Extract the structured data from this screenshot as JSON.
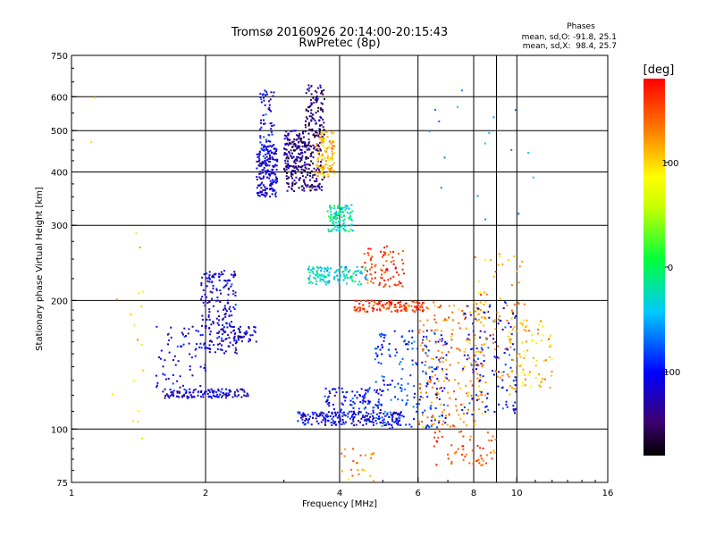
{
  "chart_data": {
    "type": "scatter",
    "title": "Tromsø 20160926 20:14:00-20:15:43",
    "subtitle": "RwPretec (8p)",
    "xlabel": "Frequency [MHz]",
    "ylabel": "Stationary phase Virtual Height [km]",
    "x_scale": "log",
    "y_scale": "log",
    "xlim": [
      1,
      16
    ],
    "ylim": [
      75,
      750
    ],
    "x_ticks": [
      {
        "value": 1,
        "label": "1"
      },
      {
        "value": 2,
        "label": "2"
      },
      {
        "value": 4,
        "label": "4"
      },
      {
        "value": 6,
        "label": "6"
      },
      {
        "value": 8,
        "label": "8"
      },
      {
        "value": 10,
        "label": "10"
      },
      {
        "value": 16,
        "label": "16"
      }
    ],
    "x_gridlines": [
      2,
      4,
      6,
      8,
      9,
      10
    ],
    "y_ticks": [
      {
        "value": 75,
        "label": "75"
      },
      {
        "value": 100,
        "label": "100"
      },
      {
        "value": 200,
        "label": "200"
      },
      {
        "value": 300,
        "label": "300"
      },
      {
        "value": 400,
        "label": "400"
      },
      {
        "value": 500,
        "label": "500"
      },
      {
        "value": 600,
        "label": "600"
      },
      {
        "value": 750,
        "label": "750"
      }
    ],
    "y_gridlines": [
      100,
      200,
      300,
      400,
      500,
      600
    ],
    "grid": true,
    "phases_header": "Phases",
    "phase_stats": [
      "mean, sd,O: -91.8, 25.1",
      "mean, sd,X:  98.4, 25.7"
    ],
    "colorbar": {
      "label": "[deg]",
      "range": [
        -180,
        180
      ],
      "ticks": [
        {
          "value": 100,
          "label": "100"
        },
        {
          "value": 0,
          "label": "0"
        },
        {
          "value": -100,
          "label": "-100"
        }
      ],
      "colormap": "rainbow (black-purple-blue-cyan-green-yellow-orange-red)"
    },
    "clusters": [
      {
        "f": [
          1.6,
          2.5
        ],
        "h": [
          118,
          124
        ],
        "phase": -115,
        "n": 120
      },
      {
        "f": [
          1.55,
          2.0
        ],
        "h": [
          120,
          175
        ],
        "phase": -110,
        "n": 70
      },
      {
        "f": [
          1.95,
          2.35
        ],
        "h": [
          150,
          235
        ],
        "phase": -115,
        "n": 200
      },
      {
        "f": [
          2.3,
          2.6
        ],
        "h": [
          160,
          175
        ],
        "phase": -120,
        "n": 40
      },
      {
        "f": [
          2.6,
          2.9
        ],
        "h": [
          350,
          460
        ],
        "phase": -115,
        "n": 180
      },
      {
        "f": [
          2.65,
          2.85
        ],
        "h": [
          430,
          630
        ],
        "phase": -110,
        "n": 60
      },
      {
        "f": [
          3.0,
          3.35
        ],
        "h": [
          360,
          500
        ],
        "phase": -140,
        "n": 200
      },
      {
        "f": [
          3.35,
          3.7
        ],
        "h": [
          360,
          640
        ],
        "phase": -145,
        "n": 220
      },
      {
        "f": [
          3.55,
          3.9
        ],
        "h": [
          390,
          500
        ],
        "phase": 110,
        "n": 110
      },
      {
        "f": [
          3.75,
          4.3
        ],
        "h": [
          290,
          335
        ],
        "phase": -20,
        "n": 110
      },
      {
        "f": [
          3.4,
          4.6
        ],
        "h": [
          218,
          240
        ],
        "phase": -30,
        "n": 130
      },
      {
        "f": [
          4.5,
          5.6
        ],
        "h": [
          215,
          270
        ],
        "phase": 160,
        "n": 80
      },
      {
        "f": [
          4.3,
          6.2
        ],
        "h": [
          188,
          200
        ],
        "phase": 160,
        "n": 120
      },
      {
        "f": [
          3.2,
          5.5
        ],
        "h": [
          102,
          110
        ],
        "phase": -110,
        "n": 220
      },
      {
        "f": [
          3.7,
          5.0
        ],
        "h": [
          110,
          125
        ],
        "phase": -100,
        "n": 90
      },
      {
        "f": [
          4.8,
          7.0
        ],
        "h": [
          100,
          170
        ],
        "phase": -90,
        "n": 200
      },
      {
        "f": [
          6.0,
          8.5
        ],
        "h": [
          100,
          200
        ],
        "phase": 130,
        "n": 200
      },
      {
        "f": [
          7.5,
          10.0
        ],
        "h": [
          108,
          200
        ],
        "phase": -100,
        "n": 120
      },
      {
        "f": [
          8.0,
          10.5
        ],
        "h": [
          120,
          260
        ],
        "phase": 120,
        "n": 90
      },
      {
        "f": [
          9.5,
          12.0
        ],
        "h": [
          125,
          180
        ],
        "phase": 110,
        "n": 70
      },
      {
        "f": [
          6.5,
          9.0
        ],
        "h": [
          82,
          100
        ],
        "phase": 150,
        "n": 60
      },
      {
        "f": [
          4.0,
          4.8
        ],
        "h": [
          75,
          90
        ],
        "phase": 120,
        "n": 25
      },
      {
        "f": [
          1.35,
          1.45
        ],
        "h": [
          88,
          290
        ],
        "phase": 100,
        "n": 15
      },
      {
        "f": [
          1.05,
          1.3
        ],
        "h": [
          85,
          660
        ],
        "phase": 100,
        "n": 4
      },
      {
        "f": [
          6.0,
          11.5
        ],
        "h": [
          260,
          650
        ],
        "phase": -60,
        "n": 18
      }
    ]
  }
}
